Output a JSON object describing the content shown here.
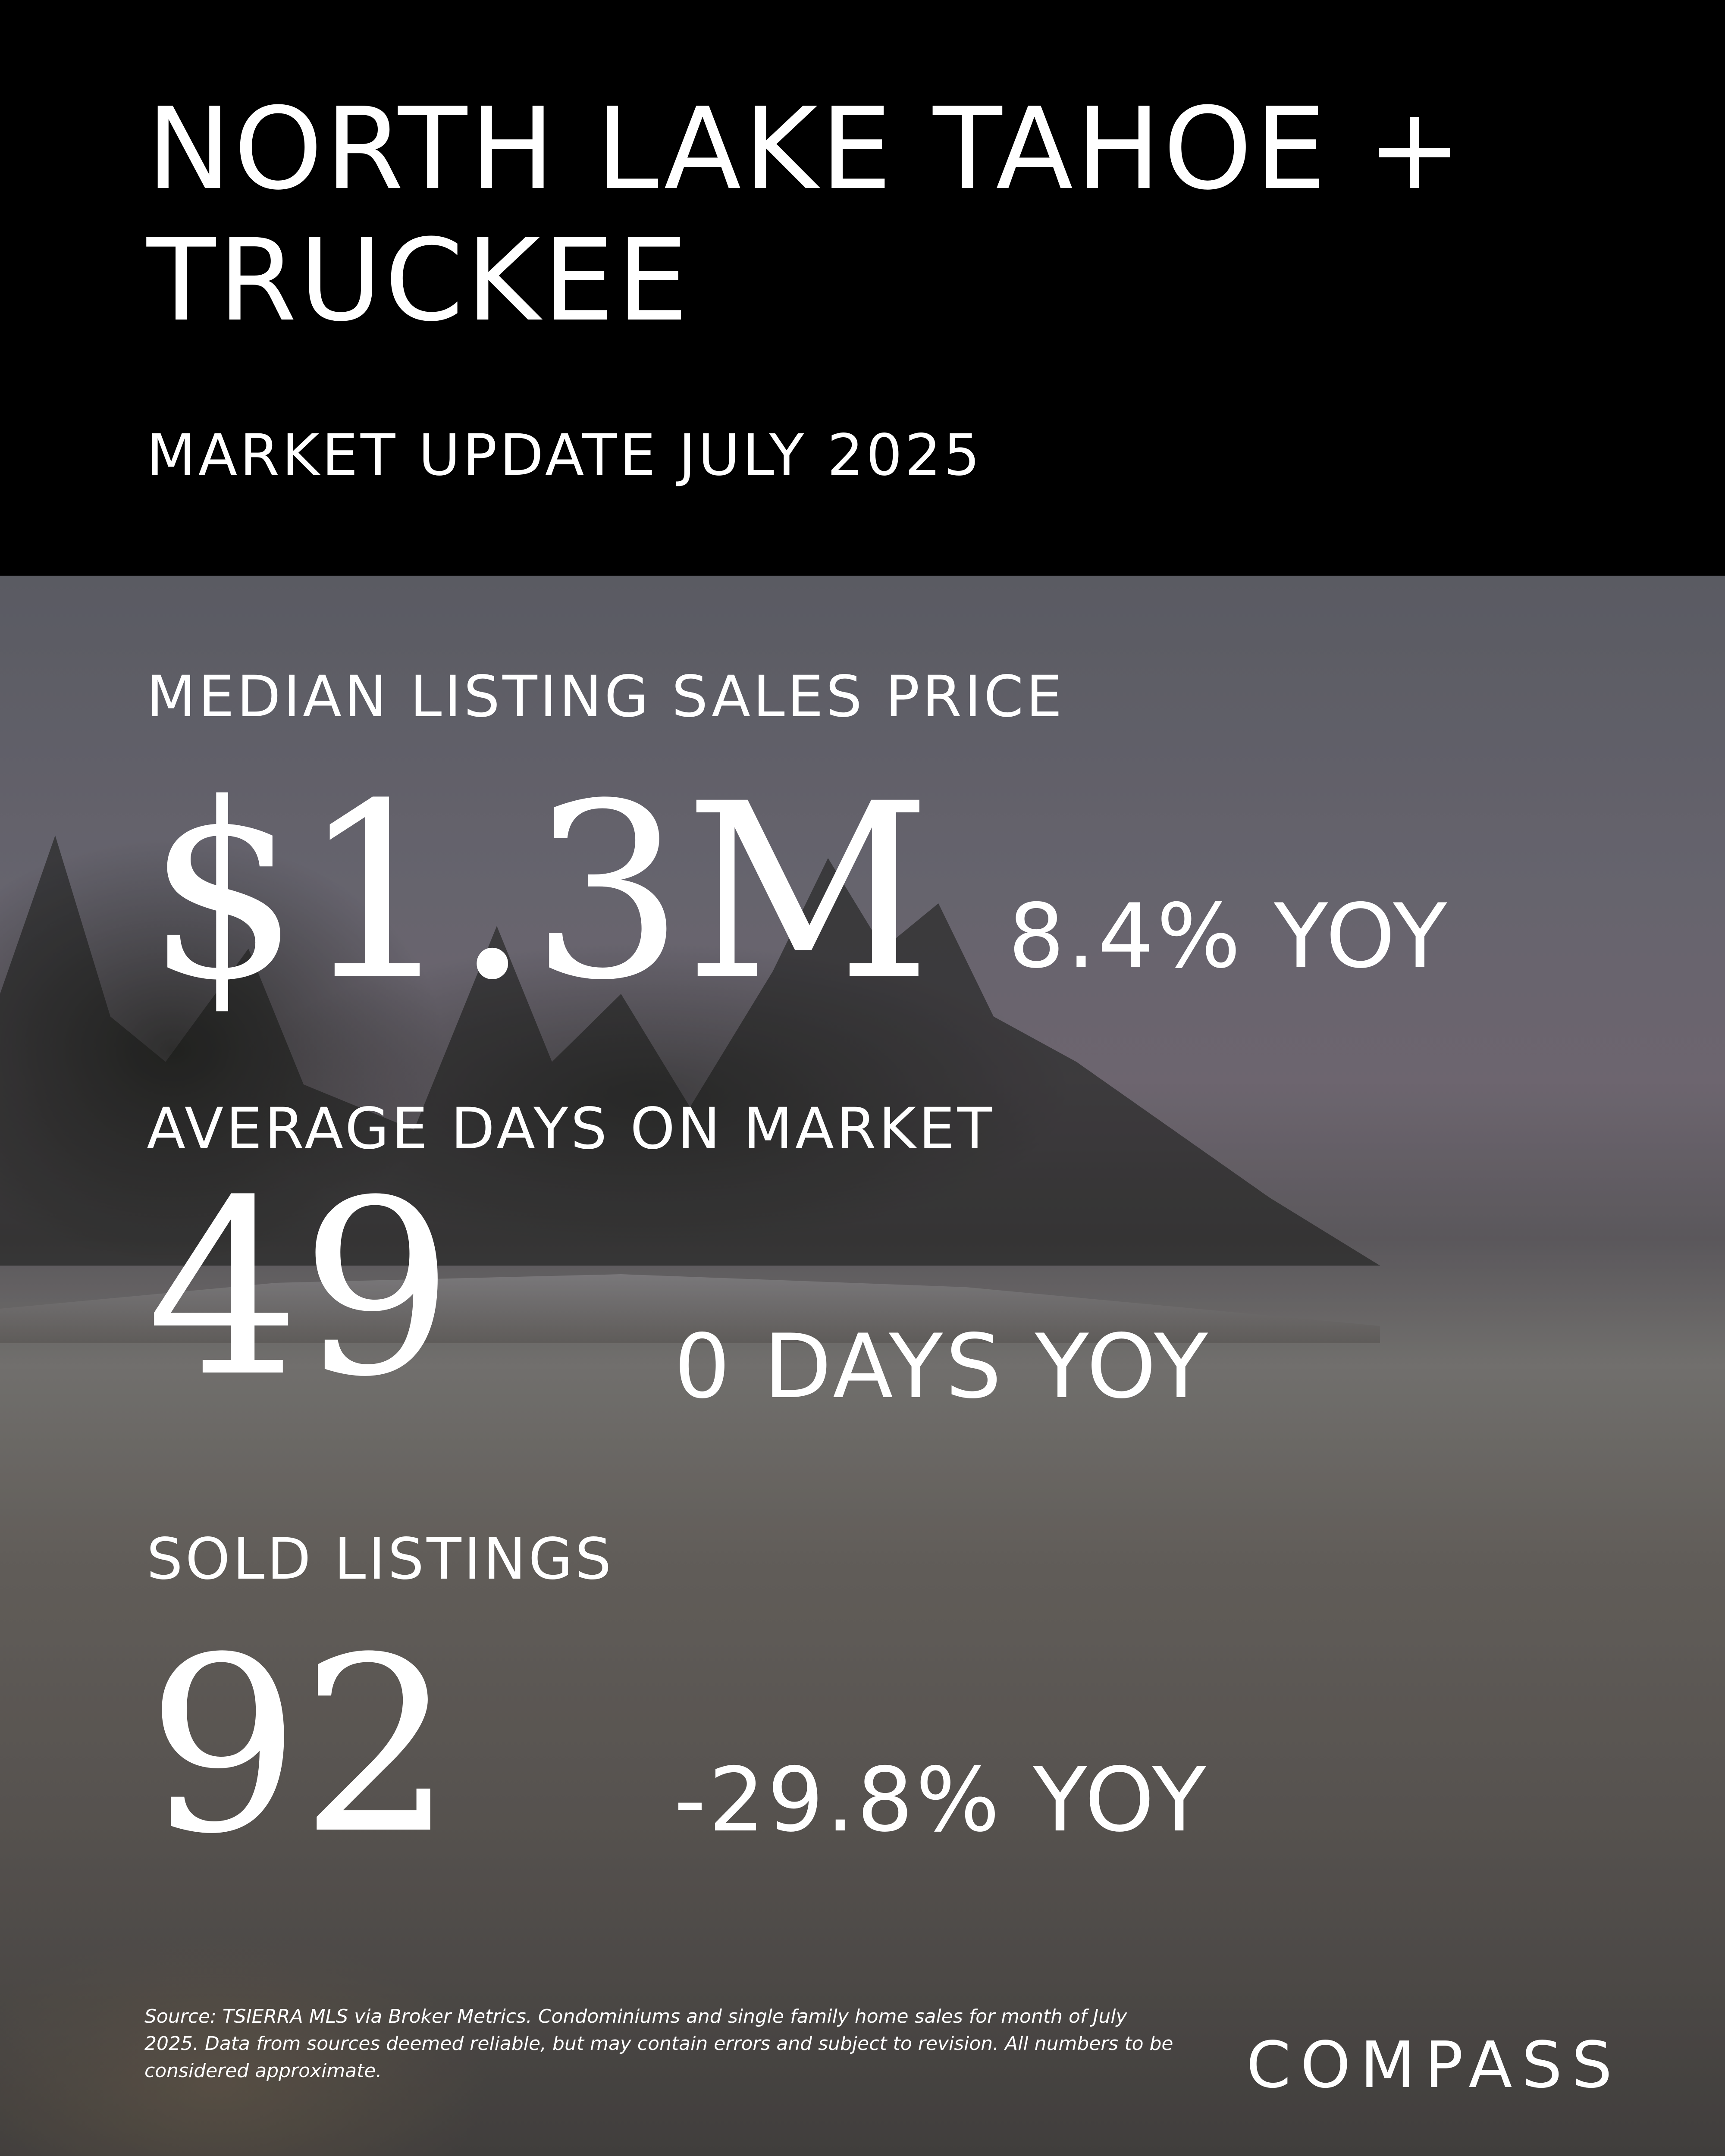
{
  "header": {
    "title_line1": "NORTH LAKE TAHOE +",
    "title_line2": "TRUCKEE",
    "subtitle": "MARKET UPDATE JULY 2025"
  },
  "stats": [
    {
      "label": "MEDIAN LISTING SALES PRICE",
      "value": "$1.3M",
      "change": "8.4% YOY"
    },
    {
      "label": "AVERAGE DAYS ON MARKET",
      "value": "49",
      "change": "0 DAYS YOY"
    },
    {
      "label": "SOLD LISTINGS",
      "value": "92",
      "change": "-29.8% YOY"
    }
  ],
  "footer": {
    "source": "Source: TSIERRA MLS via Broker Metrics. Condominiums and single family home sales for month of July 2025. Data from sources deemed reliable, but may contain errors and subject to revision. All numbers to be considered approximate.",
    "logo": "COMPASS"
  },
  "colors": {
    "header_bg": "#000000",
    "text": "#ffffff"
  }
}
